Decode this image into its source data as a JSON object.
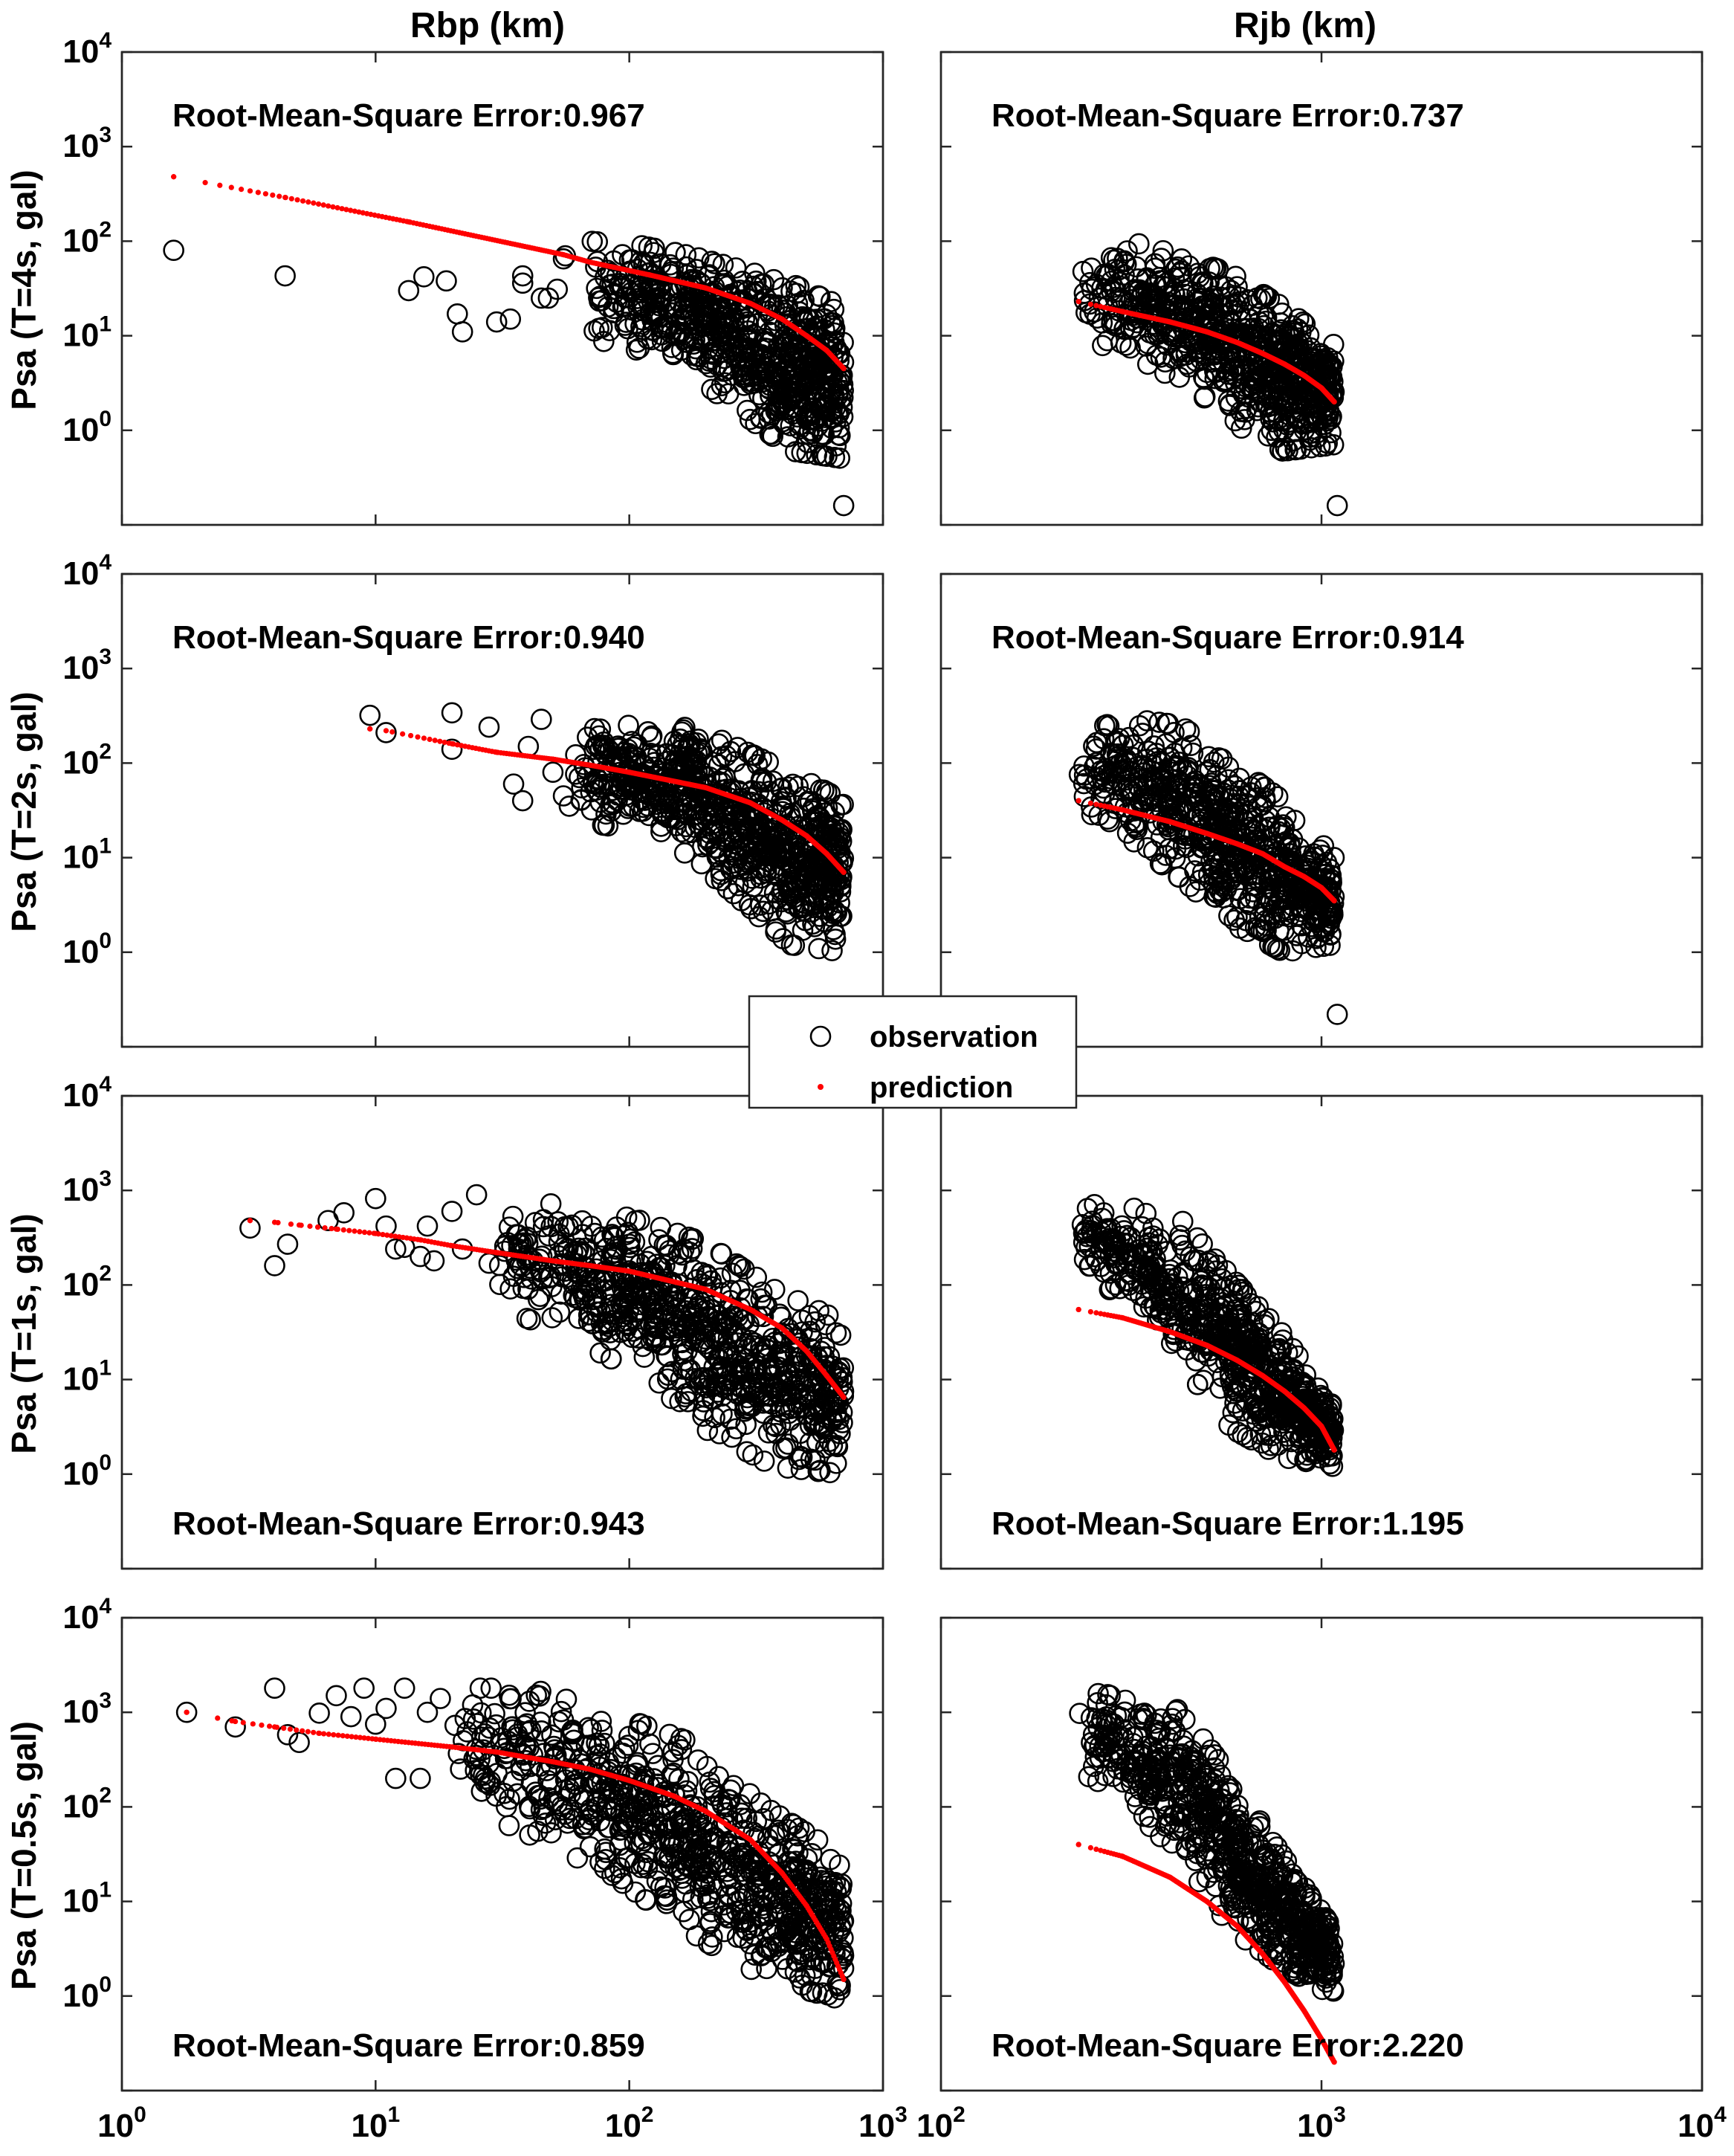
{
  "figure": {
    "column_titles": [
      "Rbp (km)",
      "Rjb (km)"
    ],
    "row_labels": [
      "Psa (T=4s, gal)",
      "Psa (T=2s, gal)",
      "Psa (T=1s, gal)",
      "Psa (T=0.5s, gal)"
    ],
    "legend": {
      "observation": "observation",
      "prediction": "prediction",
      "placement": "center"
    },
    "colors": {
      "observation": "#000000",
      "prediction": "#ff0000"
    },
    "y_tick_labels": [
      {
        "base": "10",
        "exp": "0"
      },
      {
        "base": "10",
        "exp": "1"
      },
      {
        "base": "10",
        "exp": "2"
      },
      {
        "base": "10",
        "exp": "3"
      },
      {
        "base": "10",
        "exp": "4"
      }
    ],
    "x_tick_labels_left": [
      {
        "base": "10",
        "exp": "0"
      },
      {
        "base": "10",
        "exp": "1"
      },
      {
        "base": "10",
        "exp": "2"
      },
      {
        "base": "10",
        "exp": "3"
      }
    ],
    "x_tick_labels_right": [
      {
        "base": "10",
        "exp": "2"
      },
      {
        "base": "10",
        "exp": "3"
      },
      {
        "base": "10",
        "exp": "4"
      }
    ]
  },
  "chart_data": [
    {
      "type": "scatter",
      "panel": "T=4s / Rbp",
      "xscale": "log",
      "yscale": "log",
      "xlim": [
        1,
        1000
      ],
      "ylim": [
        0.1,
        10000
      ],
      "annotation": "Root-Mean-Square Error:0.967",
      "prediction_curve": {
        "x": [
          1.6,
          4.4,
          13.5,
          55,
          70,
          120,
          200,
          300,
          400,
          500,
          600,
          700
        ],
        "y": [
          480,
          290,
          160,
          72,
          60,
          44,
          32,
          22,
          15,
          10,
          7,
          4.5
        ]
      },
      "observation_cloud": {
        "x_range": [
          70,
          700
        ],
        "y_upper": [
          100,
          90,
          70,
          50,
          35,
          20
        ],
        "y_lower": [
          10,
          6,
          4,
          1.5,
          0.6,
          0.5
        ],
        "n": 700
      },
      "observation_outliers": {
        "x": [
          1.6,
          4.4,
          13.5,
          15.5,
          19,
          21,
          22,
          30,
          34,
          38,
          38,
          45,
          48,
          52,
          55,
          56
        ],
        "y": [
          80,
          43,
          30,
          42,
          38,
          17,
          11,
          14,
          15,
          43,
          36,
          25,
          25,
          31,
          65,
          70
        ]
      },
      "extra_points": {
        "x": [
          700
        ],
        "y": [
          0.16
        ]
      }
    },
    {
      "type": "scatter",
      "panel": "T=4s / Rjb",
      "xscale": "log",
      "yscale": "log",
      "xlim": [
        100,
        10000
      ],
      "ylim": [
        0.1,
        10000
      ],
      "annotation": "Root-Mean-Square Error:0.737",
      "prediction_curve": {
        "x": [
          230,
          300,
          400,
          500,
          600,
          700,
          800,
          900,
          1000,
          1080
        ],
        "y": [
          23,
          18,
          14,
          11,
          8.5,
          6.5,
          5,
          3.8,
          2.8,
          2
        ]
      },
      "observation_cloud": {
        "x_range": [
          230,
          1080
        ],
        "y_upper": [
          90,
          100,
          70,
          45,
          20,
          8
        ],
        "y_lower": [
          10,
          6,
          3,
          1.2,
          0.6,
          0.7
        ],
        "n": 700
      },
      "observation_outliers": {
        "x": [],
        "y": []
      },
      "extra_points": {
        "x": [
          1100
        ],
        "y": [
          0.16
        ]
      }
    },
    {
      "type": "scatter",
      "panel": "T=2s / Rbp",
      "xscale": "log",
      "yscale": "log",
      "xlim": [
        1,
        1000
      ],
      "ylim": [
        0.1,
        10000
      ],
      "annotation": "Root-Mean-Square Error:0.940",
      "prediction_curve": {
        "x": [
          9.5,
          11,
          20,
          30,
          50,
          70,
          100,
          200,
          300,
          400,
          500,
          600,
          700
        ],
        "y": [
          230,
          220,
          160,
          130,
          110,
          95,
          80,
          55,
          38,
          25,
          17,
          11,
          7
        ]
      },
      "observation_cloud": {
        "x_range": [
          60,
          700
        ],
        "y_upper": [
          300,
          250,
          270,
          150,
          80,
          40
        ],
        "y_lower": [
          25,
          20,
          12,
          4,
          1.2,
          1
        ],
        "n": 750
      },
      "observation_outliers": {
        "x": [
          9.5,
          11,
          20,
          20,
          28,
          35,
          38,
          40,
          45,
          50,
          55,
          58
        ],
        "y": [
          320,
          210,
          340,
          140,
          240,
          60,
          40,
          150,
          290,
          80,
          45,
          35
        ]
      },
      "extra_points": {
        "x": [],
        "y": []
      }
    },
    {
      "type": "scatter",
      "panel": "T=2s / Rjb",
      "xscale": "log",
      "yscale": "log",
      "xlim": [
        100,
        10000
      ],
      "ylim": [
        0.1,
        10000
      ],
      "annotation": "Root-Mean-Square Error:0.914",
      "prediction_curve": {
        "x": [
          230,
          300,
          400,
          500,
          600,
          700,
          800,
          900,
          1000,
          1080
        ],
        "y": [
          40,
          32,
          24,
          18,
          14,
          11,
          8,
          6.3,
          4.8,
          3.5
        ]
      },
      "observation_cloud": {
        "x_range": [
          230,
          1080
        ],
        "y_upper": [
          330,
          300,
          250,
          100,
          40,
          10
        ],
        "y_lower": [
          30,
          15,
          6,
          2,
          1,
          1.2
        ],
        "n": 700
      },
      "observation_outliers": {
        "x": [],
        "y": []
      },
      "extra_points": {
        "x": [
          1100
        ],
        "y": [
          0.22
        ]
      }
    },
    {
      "type": "scatter",
      "panel": "T=1s / Rbp",
      "xscale": "log",
      "yscale": "log",
      "xlim": [
        1,
        1000
      ],
      "ylim": [
        0.1,
        10000
      ],
      "annotation": "Root-Mean-Square Error:0.943",
      "prediction_curve": {
        "x": [
          3.2,
          4,
          5,
          7,
          10,
          15,
          20,
          30,
          50,
          70,
          100,
          200,
          300,
          400,
          500,
          600,
          700
        ],
        "y": [
          480,
          460,
          430,
          390,
          350,
          300,
          260,
          220,
          180,
          160,
          140,
          90,
          55,
          35,
          20,
          11,
          6.5
        ]
      },
      "observation_cloud": {
        "x_range": [
          30,
          700
        ],
        "y_upper": [
          800,
          700,
          500,
          280,
          90,
          40
        ],
        "y_lower": [
          60,
          30,
          12,
          3,
          1.2,
          1
        ],
        "n": 750
      },
      "observation_outliers": {
        "x": [
          3.2,
          4,
          4.5,
          6.5,
          7.5,
          10,
          11,
          12,
          13,
          15,
          16,
          17,
          20,
          22,
          25,
          28
        ],
        "y": [
          400,
          160,
          270,
          480,
          580,
          820,
          420,
          240,
          250,
          200,
          420,
          180,
          600,
          240,
          900,
          170
        ]
      },
      "extra_points": {
        "x": [],
        "y": []
      }
    },
    {
      "type": "scatter",
      "panel": "T=1s / Rjb",
      "xscale": "log",
      "yscale": "log",
      "xlim": [
        100,
        10000
      ],
      "ylim": [
        0.1,
        10000
      ],
      "annotation": "Root-Mean-Square Error:1.195",
      "prediction_curve": {
        "x": [
          230,
          300,
          400,
          500,
          600,
          700,
          800,
          900,
          1000,
          1080
        ],
        "y": [
          55,
          45,
          32,
          23,
          16,
          11,
          7.5,
          5,
          3.2,
          1.8
        ]
      },
      "observation_cloud": {
        "x_range": [
          230,
          1080
        ],
        "y_upper": [
          800,
          700,
          500,
          120,
          30,
          5
        ],
        "y_lower": [
          150,
          60,
          15,
          3,
          1.5,
          1.2
        ],
        "n": 700
      },
      "observation_outliers": {
        "x": [],
        "y": []
      },
      "extra_points": {
        "x": [],
        "y": []
      }
    },
    {
      "type": "scatter",
      "panel": "T=0.5s / Rbp",
      "xscale": "log",
      "yscale": "log",
      "xlim": [
        1,
        1000
      ],
      "ylim": [
        0.1,
        10000
      ],
      "annotation": "Root-Mean-Square Error:0.859",
      "prediction_curve": {
        "x": [
          1.8,
          2.8,
          4,
          6,
          10,
          20,
          30,
          50,
          70,
          100,
          150,
          200,
          300,
          400,
          500,
          600,
          700
        ],
        "y": [
          1000,
          800,
          700,
          600,
          520,
          430,
          380,
          300,
          250,
          190,
          130,
          90,
          45,
          20,
          9,
          4,
          1.5
        ]
      },
      "observation_cloud": {
        "x_range": [
          20,
          700
        ],
        "y_upper": [
          1800,
          1800,
          1000,
          500,
          100,
          30
        ],
        "y_lower": [
          120,
          50,
          20,
          5,
          1.5,
          0.9
        ],
        "n": 800
      },
      "observation_outliers": {
        "x": [
          1.8,
          2.8,
          4,
          4.5,
          5,
          6,
          7,
          8,
          9,
          10,
          11,
          12,
          13,
          15,
          16,
          18
        ],
        "y": [
          1000,
          700,
          1800,
          580,
          480,
          980,
          1500,
          900,
          1800,
          750,
          1100,
          200,
          1800,
          200,
          1000,
          1400
        ]
      },
      "extra_points": {
        "x": [],
        "y": []
      }
    },
    {
      "type": "scatter",
      "panel": "T=0.5s / Rjb",
      "xscale": "log",
      "yscale": "log",
      "xlim": [
        100,
        10000
      ],
      "ylim": [
        0.1,
        10000
      ],
      "annotation": "Root-Mean-Square Error:2.220",
      "prediction_curve": {
        "x": [
          230,
          300,
          400,
          500,
          600,
          700,
          800,
          900,
          1000,
          1080
        ],
        "y": [
          40,
          30,
          18,
          10,
          5.5,
          2.8,
          1.4,
          0.7,
          0.35,
          0.2
        ]
      },
      "observation_cloud": {
        "x_range": [
          230,
          1080
        ],
        "y_upper": [
          1900,
          1600,
          1100,
          200,
          30,
          5
        ],
        "y_lower": [
          250,
          100,
          30,
          5,
          2,
          1
        ],
        "n": 700
      },
      "observation_outliers": {
        "x": [],
        "y": []
      },
      "extra_points": {
        "x": [],
        "y": []
      }
    }
  ]
}
